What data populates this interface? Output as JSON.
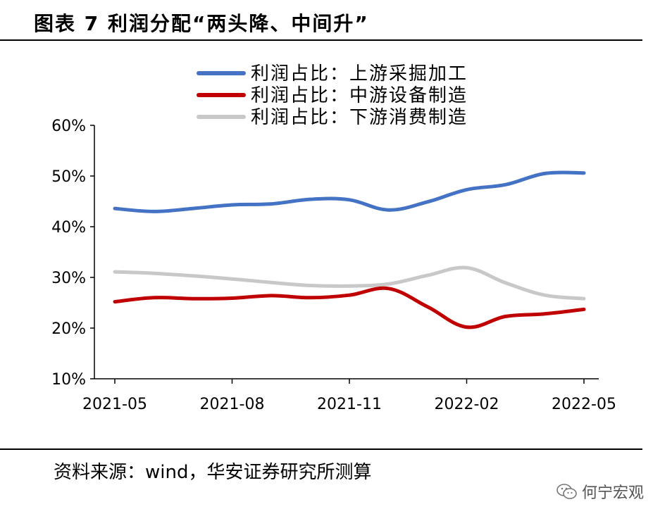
{
  "header": {
    "title": "图表 7 利润分配“两头降、中间升”"
  },
  "footer": {
    "source": "资料来源：wind，华安证券研究所测算",
    "watermark": "何宁宏观"
  },
  "colors": {
    "upstream": "#4472C4",
    "midstream": "#C00000",
    "downstream": "#C8C8C8",
    "axis": "#000000"
  },
  "chart_data": {
    "type": "line",
    "title": "",
    "xlabel": "",
    "ylabel": "",
    "ylim": [
      10,
      60
    ],
    "yticks": [
      10,
      20,
      30,
      40,
      50,
      60
    ],
    "ytick_labels": [
      "10%",
      "20%",
      "30%",
      "40%",
      "50%",
      "60%"
    ],
    "xticks": [
      "2021-05",
      "2021-08",
      "2021-11",
      "2022-02",
      "2022-05"
    ],
    "grid": false,
    "legend_position": "top-right",
    "x": [
      "2021-05",
      "2021-06",
      "2021-07",
      "2021-08",
      "2021-09",
      "2021-10",
      "2021-11",
      "2021-12",
      "2022-01",
      "2022-02",
      "2022-03",
      "2022-04",
      "2022-05"
    ],
    "series": [
      {
        "name": "利润占比：上游采掘加工",
        "color_key": "upstream",
        "values": [
          43.6,
          43.0,
          43.6,
          44.3,
          44.5,
          45.4,
          45.3,
          43.3,
          44.9,
          47.3,
          48.3,
          50.5,
          50.6
        ]
      },
      {
        "name": "利润占比：中游设备制造",
        "color_key": "midstream",
        "values": [
          25.2,
          26.0,
          25.8,
          25.9,
          26.4,
          26.0,
          26.5,
          27.8,
          24.2,
          20.2,
          22.3,
          22.8,
          23.7
        ]
      },
      {
        "name": "利润占比：下游消费制造",
        "color_key": "downstream",
        "values": [
          31.1,
          30.8,
          30.3,
          29.7,
          29.0,
          28.4,
          28.3,
          28.7,
          30.4,
          31.9,
          28.9,
          26.5,
          25.8
        ]
      }
    ]
  }
}
